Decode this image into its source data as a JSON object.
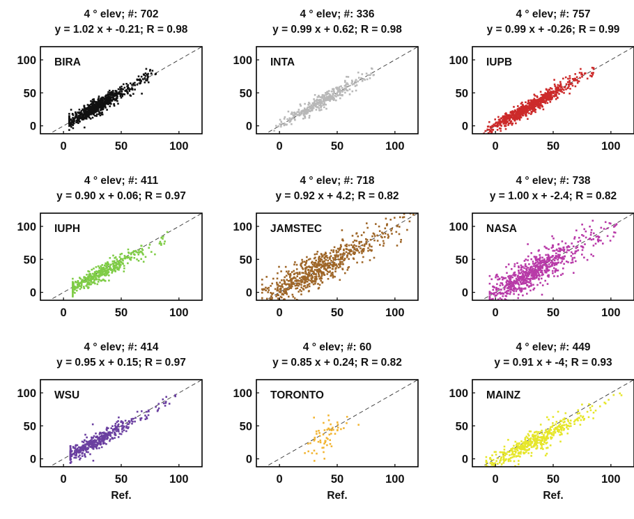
{
  "chart_data": [
    {
      "type": "scatter",
      "label": "BIRA",
      "title1": "4 ° elev; #: 702",
      "title2": "y = 1.02 x + -0.21; R = 0.98",
      "color": "#111111",
      "n": 702,
      "slope": 1.02,
      "intercept": -0.21,
      "R": 0.98,
      "xrange": [
        5,
        80
      ],
      "xmode": 28,
      "xlabel": "",
      "xlim": [
        -20,
        120
      ],
      "ylim": [
        -12,
        120
      ],
      "xticks": [
        0,
        50,
        100
      ],
      "yticks": [
        0,
        50,
        100
      ],
      "reference_line": "dashed 1:1"
    },
    {
      "type": "scatter",
      "label": "INTA",
      "title1": "4 ° elev; #: 336",
      "title2": "y = 0.99 x + 0.62; R = 0.98",
      "color": "#b8b8b8",
      "n": 336,
      "slope": 0.99,
      "intercept": 0.62,
      "R": 0.98,
      "xrange": [
        -5,
        85
      ],
      "xmode": 35,
      "xlabel": "",
      "xlim": [
        -20,
        120
      ],
      "ylim": [
        -12,
        120
      ],
      "xticks": [
        0,
        50,
        100
      ],
      "yticks": [
        0,
        50,
        100
      ],
      "reference_line": "dashed 1:1"
    },
    {
      "type": "scatter",
      "label": "IUPB",
      "title1": "4 ° elev; #: 757",
      "title2": "y = 0.99 x + -0.26; R = 0.99",
      "color": "#cc2a2a",
      "n": 757,
      "slope": 0.99,
      "intercept": -0.26,
      "R": 0.99,
      "xrange": [
        -10,
        85
      ],
      "xmode": 30,
      "xlabel": "",
      "xlim": [
        -20,
        120
      ],
      "ylim": [
        -12,
        120
      ],
      "xticks": [
        0,
        50,
        100
      ],
      "yticks": [
        0,
        50,
        100
      ],
      "reference_line": "dashed 1:1"
    },
    {
      "type": "scatter",
      "label": "IUPH",
      "title1": "4 ° elev; #: 411",
      "title2": "y = 0.90 x + 0.06; R = 0.97",
      "color": "#7fcc46",
      "n": 411,
      "slope": 0.9,
      "intercept": 0.06,
      "R": 0.97,
      "xrange": [
        8,
        90
      ],
      "xmode": 30,
      "xlabel": "",
      "xlim": [
        -20,
        120
      ],
      "ylim": [
        -12,
        120
      ],
      "xticks": [
        0,
        50,
        100
      ],
      "yticks": [
        0,
        50,
        100
      ],
      "reference_line": "dashed 1:1"
    },
    {
      "type": "scatter",
      "label": "JAMSTEC",
      "title1": "4 ° elev; #: 718",
      "title2": "y = 0.92 x + 4.2; R = 0.82",
      "color": "#9e6628",
      "n": 718,
      "slope": 0.92,
      "intercept": 4.2,
      "R": 0.82,
      "xrange": [
        -15,
        120
      ],
      "xmode": 30,
      "xlabel": "",
      "xlim": [
        -20,
        120
      ],
      "ylim": [
        -12,
        120
      ],
      "xticks": [
        0,
        50,
        100
      ],
      "yticks": [
        0,
        50,
        100
      ],
      "reference_line": "dashed 1:1"
    },
    {
      "type": "scatter",
      "label": "NASA",
      "title1": "4 ° elev; #: 738",
      "title2": "y = 1.00 x + -2.4; R = 0.82",
      "color": "#b83aa8",
      "n": 738,
      "slope": 1.0,
      "intercept": -2.4,
      "R": 0.82,
      "xrange": [
        -5,
        105
      ],
      "xmode": 30,
      "xlabel": "",
      "xlim": [
        -20,
        120
      ],
      "ylim": [
        -12,
        120
      ],
      "xticks": [
        0,
        50,
        100
      ],
      "yticks": [
        0,
        50,
        100
      ],
      "reference_line": "dashed 1:1"
    },
    {
      "type": "scatter",
      "label": "WSU",
      "title1": "4 ° elev; #: 414",
      "title2": "y = 0.95 x + 0.15; R = 0.97",
      "color": "#6a3fa0",
      "n": 414,
      "slope": 0.95,
      "intercept": 0.15,
      "R": 0.97,
      "xrange": [
        6,
        100
      ],
      "xmode": 28,
      "xlabel": "Ref.",
      "xlim": [
        -20,
        120
      ],
      "ylim": [
        -12,
        120
      ],
      "xticks": [
        0,
        50,
        100
      ],
      "yticks": [
        0,
        50,
        100
      ],
      "reference_line": "dashed 1:1"
    },
    {
      "type": "scatter",
      "label": "TORONTO",
      "title1": "4 ° elev; #: 60",
      "title2": "y = 0.85 x + 0.24; R = 0.82",
      "color": "#f2b533",
      "n": 60,
      "slope": 0.85,
      "intercept": 0.24,
      "R": 0.82,
      "xrange": [
        22,
        72
      ],
      "xmode": 40,
      "xlabel": "Ref.",
      "xlim": [
        -20,
        120
      ],
      "ylim": [
        -12,
        120
      ],
      "xticks": [
        0,
        50,
        100
      ],
      "yticks": [
        0,
        50,
        100
      ],
      "reference_line": "dashed 1:1"
    },
    {
      "type": "scatter",
      "label": "MAINZ",
      "title1": "4 ° elev; #: 449",
      "title2": "y = 0.91 x + -4; R = 0.93",
      "color": "#e6e62a",
      "n": 449,
      "slope": 0.91,
      "intercept": -4,
      "R": 0.93,
      "xrange": [
        -8,
        110
      ],
      "xmode": 30,
      "xlabel": "Ref.",
      "xlim": [
        -20,
        120
      ],
      "ylim": [
        -12,
        120
      ],
      "xticks": [
        0,
        50,
        100
      ],
      "yticks": [
        0,
        50,
        100
      ],
      "reference_line": "dashed 1:1"
    }
  ]
}
